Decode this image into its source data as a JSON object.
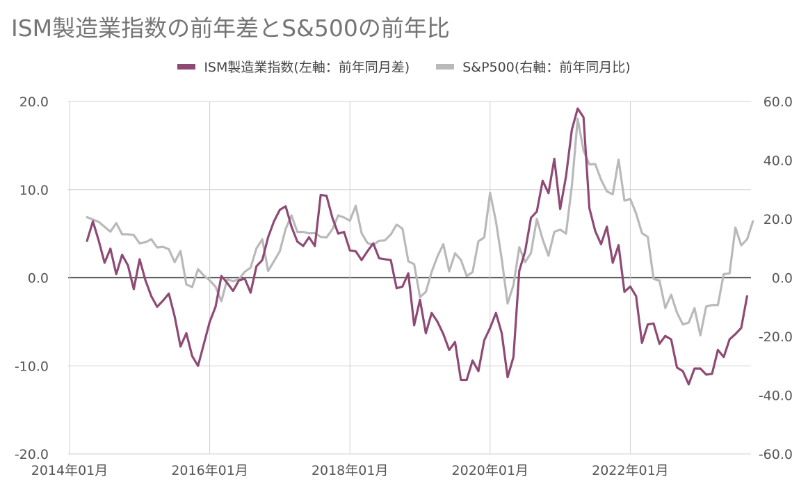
{
  "chart_data": {
    "type": "line",
    "title": "ISM製造業指数の前年差とS&500の前年比",
    "legend_position": "top",
    "grid": true,
    "x_ticks": [
      "2014年01月",
      "2016年01月",
      "2018年01月",
      "2020年01月",
      "2022年01月"
    ],
    "y_left": {
      "ylim": [
        -20,
        20
      ],
      "ticks": [
        "20.0",
        "10.0",
        "0.0",
        "-10.0",
        "-20.0"
      ]
    },
    "y_right": {
      "ylim": [
        -60,
        60
      ],
      "ticks": [
        "60.0",
        "40.0",
        "20.0",
        "0.0",
        "-20.0",
        "-40.0",
        "-60.0"
      ]
    },
    "series": [
      {
        "name": "ISM製造業指数(左軸：前年同月差)",
        "axis": "left",
        "color": "#8e4a74",
        "start": "2014年04月",
        "values": [
          4.2,
          6.4,
          4.2,
          1.7,
          3.3,
          0.4,
          2.6,
          1.4,
          -1.3,
          2.1,
          -0.3,
          -2.1,
          -3.3,
          -2.6,
          -1.8,
          -4.4,
          -7.8,
          -6.3,
          -8.9,
          -10.0,
          -7.5,
          -5.0,
          -3.3,
          0.2,
          -0.6,
          -1.5,
          -0.3,
          -0.1,
          -1.7,
          1.3,
          2.0,
          4.6,
          6.4,
          7.7,
          8.1,
          5.8,
          4.1,
          3.6,
          4.6,
          3.6,
          9.4,
          9.3,
          6.8,
          5.0,
          5.2,
          3.1,
          3.0,
          2.0,
          3.0,
          3.9,
          2.2,
          2.1,
          2.0,
          -1.2,
          -1.0,
          0.5,
          -5.4,
          -2.5,
          -6.3,
          -4.0,
          -5.0,
          -6.4,
          -8.2,
          -7.3,
          -11.6,
          -11.6,
          -9.4,
          -10.6,
          -7.1,
          -5.7,
          -4.0,
          -6.3,
          -11.3,
          -9.0,
          0.8,
          3.0,
          6.8,
          7.5,
          11.0,
          9.6,
          13.5,
          7.8,
          11.5,
          16.8,
          19.2,
          18.2,
          7.9,
          5.3,
          3.8,
          5.8,
          1.7,
          3.7,
          -1.6,
          -1.0,
          -2.1,
          -7.4,
          -5.3,
          -5.2,
          -7.5,
          -6.6,
          -7.0,
          -10.2,
          -10.6,
          -12.1,
          -10.3,
          -10.3,
          -11.0,
          -10.9,
          -8.2,
          -9.0,
          -7.0,
          -6.4,
          -5.7,
          -2.1
        ]
      },
      {
        "name": "S&P500(右軸：前年同月比)",
        "axis": "right",
        "color": "#b9b9b9",
        "start": "2014年04月",
        "values": [
          20.6,
          19.8,
          19.0,
          17.3,
          15.7,
          18.6,
          14.8,
          14.8,
          14.5,
          11.7,
          12.1,
          13.1,
          10.3,
          10.5,
          9.7,
          5.3,
          9.1,
          -2.3,
          -3.2,
          2.9,
          0.7,
          -0.9,
          -3.1,
          -8.0,
          -0.5,
          -1.2,
          -0.5,
          2.0,
          3.4,
          10.0,
          13.1,
          2.3,
          5.6,
          9.0,
          16.6,
          21.2,
          15.6,
          15.6,
          15.1,
          15.2,
          13.9,
          13.7,
          16.5,
          21.2,
          20.5,
          19.4,
          24.5,
          15.2,
          11.8,
          11.2,
          12.6,
          12.7,
          14.7,
          18.1,
          16.7,
          5.6,
          4.6,
          -6.6,
          -4.8,
          2.0,
          7.3,
          11.4,
          2.2,
          8.3,
          6.1,
          0.6,
          1.9,
          12.4,
          13.7,
          28.9,
          19.2,
          6.3,
          -8.8,
          -2.5,
          10.4,
          5.3,
          8.4,
          20.0,
          13.1,
          7.5,
          15.6,
          16.4,
          15.0,
          31.3,
          54.1,
          43.3,
          38.6,
          38.7,
          33.4,
          29.4,
          28.4,
          40.2,
          26.3,
          26.8,
          21.9,
          15.2,
          13.9,
          -0.4,
          -1.0,
          -10.3,
          -5.8,
          -11.9,
          -15.9,
          -15.3,
          -10.4,
          -19.6,
          -9.8,
          -9.3,
          -9.3,
          1.2,
          1.5,
          17.1,
          11.0,
          13.1,
          19.2
        ]
      }
    ]
  }
}
